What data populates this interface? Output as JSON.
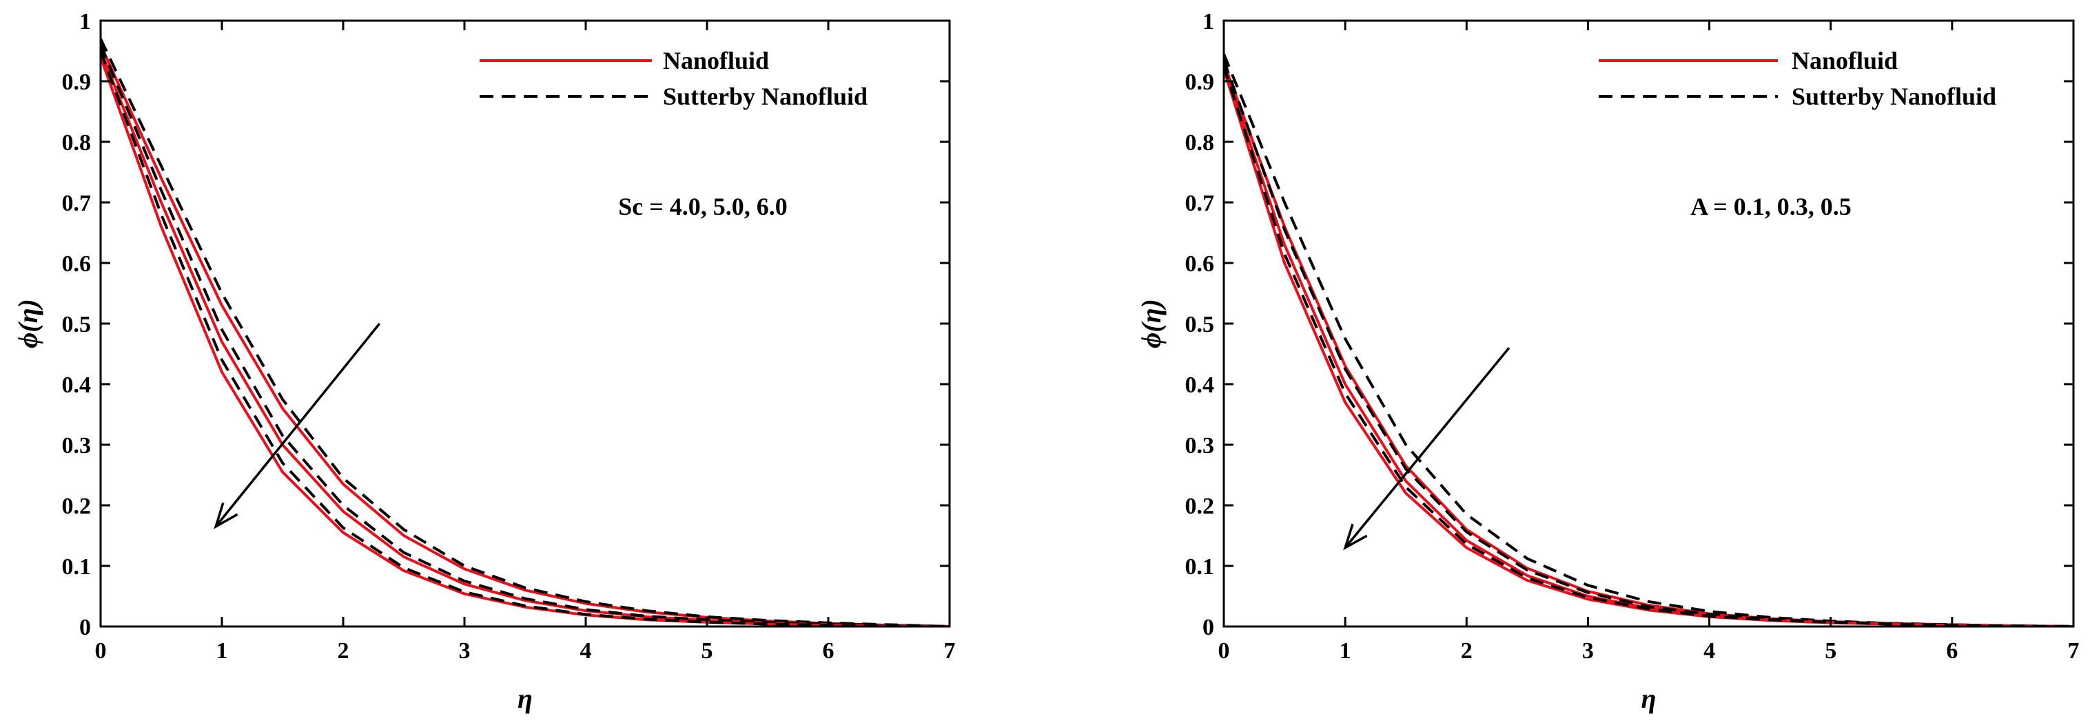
{
  "chart_data": [
    {
      "type": "line",
      "title": "",
      "xlabel": "η",
      "ylabel": "ϕ(η)",
      "xlim": [
        0,
        7
      ],
      "ylim": [
        0,
        1
      ],
      "xticks": [
        "0",
        "1",
        "2",
        "3",
        "4",
        "5",
        "6",
        "7"
      ],
      "yticks": [
        "0",
        "0.1",
        "0.2",
        "0.3",
        "0.4",
        "0.5",
        "0.6",
        "0.7",
        "0.8",
        "0.9",
        "1"
      ],
      "grid": false,
      "legend_position": "top-right",
      "legend": [
        "Nanofluid",
        "Sutterby Nanofluid"
      ],
      "annotation": "Sc = 4.0, 5.0, 6.0",
      "arrow": {
        "from": [
          2.3,
          0.5
        ],
        "to": [
          0.95,
          0.165
        ]
      },
      "x": [
        0,
        0.5,
        1,
        1.5,
        2,
        2.5,
        3,
        3.5,
        4,
        4.5,
        5,
        5.5,
        6,
        6.5,
        7
      ],
      "series": [
        {
          "name": "Nanofluid Sc = 4.0",
          "style": "solid",
          "color": "#e8101b",
          "values": [
            0.96,
            0.74,
            0.53,
            0.36,
            0.235,
            0.15,
            0.095,
            0.06,
            0.038,
            0.024,
            0.015,
            0.009,
            0.005,
            0.002,
            0.0
          ]
        },
        {
          "name": "Sutterby Nanofluid Sc = 4.0",
          "style": "dashed",
          "color": "#000000",
          "values": [
            0.97,
            0.76,
            0.55,
            0.375,
            0.245,
            0.16,
            0.1,
            0.064,
            0.041,
            0.026,
            0.016,
            0.01,
            0.006,
            0.003,
            0.0
          ]
        },
        {
          "name": "Nanofluid Sc = 5.0",
          "style": "solid",
          "color": "#e8101b",
          "values": [
            0.95,
            0.7,
            0.47,
            0.3,
            0.19,
            0.115,
            0.07,
            0.043,
            0.026,
            0.016,
            0.01,
            0.006,
            0.003,
            0.001,
            0.0
          ]
        },
        {
          "name": "Sutterby Nanofluid Sc = 5.0",
          "style": "dashed",
          "color": "#000000",
          "values": [
            0.96,
            0.72,
            0.49,
            0.315,
            0.2,
            0.122,
            0.075,
            0.046,
            0.028,
            0.017,
            0.011,
            0.007,
            0.004,
            0.002,
            0.0
          ]
        },
        {
          "name": "Nanofluid Sc = 6.0",
          "style": "solid",
          "color": "#e8101b",
          "values": [
            0.94,
            0.66,
            0.42,
            0.255,
            0.155,
            0.092,
            0.054,
            0.032,
            0.019,
            0.011,
            0.007,
            0.004,
            0.002,
            0.001,
            0.0
          ]
        },
        {
          "name": "Sutterby Nanofluid Sc = 6.0",
          "style": "dashed",
          "color": "#000000",
          "values": [
            0.95,
            0.68,
            0.44,
            0.27,
            0.163,
            0.097,
            0.057,
            0.034,
            0.02,
            0.012,
            0.007,
            0.004,
            0.002,
            0.001,
            0.0
          ]
        }
      ]
    },
    {
      "type": "line",
      "title": "",
      "xlabel": "η",
      "ylabel": "ϕ(η)",
      "xlim": [
        0,
        7
      ],
      "ylim": [
        0,
        1
      ],
      "xticks": [
        "0",
        "1",
        "2",
        "3",
        "4",
        "5",
        "6",
        "7"
      ],
      "yticks": [
        "0",
        "0.1",
        "0.2",
        "0.3",
        "0.4",
        "0.5",
        "0.6",
        "0.7",
        "0.8",
        "0.9",
        "1"
      ],
      "grid": false,
      "legend_position": "top-right",
      "legend": [
        "Nanofluid",
        "Sutterby Nanofluid"
      ],
      "annotation": "A = 0.1, 0.3, 0.5",
      "arrow": {
        "from": [
          2.35,
          0.46
        ],
        "to": [
          1.0,
          0.13
        ]
      },
      "x": [
        0,
        0.5,
        1,
        1.5,
        2,
        2.5,
        3,
        3.5,
        4,
        4.5,
        5,
        5.5,
        6,
        6.5,
        7
      ],
      "series": [
        {
          "name": "Nanofluid A = 0.1",
          "style": "solid",
          "color": "#e8101b",
          "values": [
            0.93,
            0.66,
            0.43,
            0.265,
            0.16,
            0.096,
            0.058,
            0.035,
            0.021,
            0.013,
            0.008,
            0.005,
            0.003,
            0.001,
            0.0
          ]
        },
        {
          "name": "Sutterby Nanofluid A = 0.1",
          "style": "dashed",
          "color": "#000000",
          "values": [
            0.945,
            0.7,
            0.475,
            0.3,
            0.185,
            0.112,
            0.068,
            0.041,
            0.025,
            0.015,
            0.009,
            0.005,
            0.003,
            0.001,
            0.0
          ]
        },
        {
          "name": "Nanofluid A = 0.3",
          "style": "solid",
          "color": "#e8101b",
          "values": [
            0.925,
            0.63,
            0.4,
            0.24,
            0.142,
            0.084,
            0.05,
            0.03,
            0.018,
            0.011,
            0.007,
            0.004,
            0.002,
            0.001,
            0.0
          ]
        },
        {
          "name": "Sutterby Nanofluid A = 0.3",
          "style": "dashed",
          "color": "#000000",
          "values": [
            0.935,
            0.655,
            0.425,
            0.26,
            0.156,
            0.093,
            0.056,
            0.033,
            0.02,
            0.012,
            0.007,
            0.004,
            0.002,
            0.001,
            0.0
          ]
        },
        {
          "name": "Nanofluid A = 0.5",
          "style": "solid",
          "color": "#e8101b",
          "values": [
            0.92,
            0.6,
            0.37,
            0.22,
            0.13,
            0.076,
            0.045,
            0.027,
            0.016,
            0.01,
            0.006,
            0.004,
            0.002,
            0.001,
            0.0
          ]
        },
        {
          "name": "Sutterby Nanofluid A = 0.5",
          "style": "dashed",
          "color": "#000000",
          "values": [
            0.925,
            0.615,
            0.385,
            0.23,
            0.136,
            0.08,
            0.048,
            0.029,
            0.017,
            0.011,
            0.007,
            0.004,
            0.002,
            0.001,
            0.0
          ]
        }
      ]
    }
  ]
}
